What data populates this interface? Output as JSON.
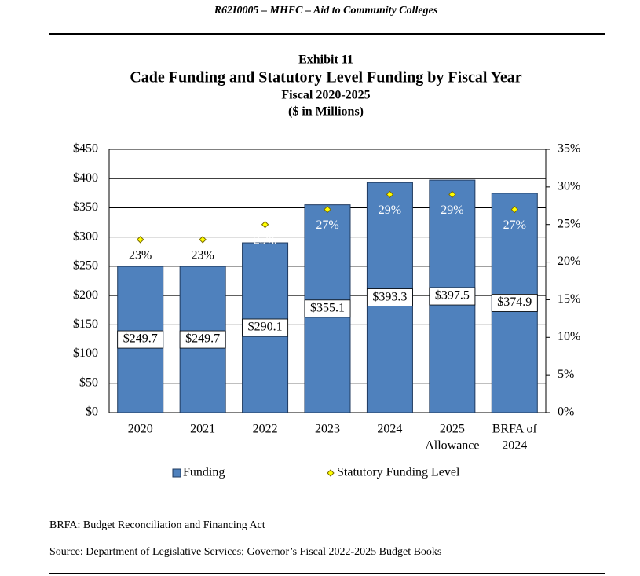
{
  "header": "R62I0005 – MHEC – Aid to Community Colleges",
  "chart_data": {
    "type": "bar",
    "exhibit": "Exhibit 11",
    "title": "Cade Funding and Statutory Level Funding by Fiscal Year",
    "subtitle": "Fiscal 2020-2025",
    "units": "($ in Millions)",
    "categories": [
      [
        "2020"
      ],
      [
        "2021"
      ],
      [
        "2022"
      ],
      [
        "2023"
      ],
      [
        "2024"
      ],
      [
        "2025",
        "Allowance"
      ],
      [
        "BRFA of",
        "2024"
      ]
    ],
    "series": [
      {
        "name": "Funding",
        "color": "#4f81bd",
        "values": [
          249.7,
          249.7,
          290.1,
          355.1,
          393.3,
          397.5,
          374.9
        ],
        "value_labels": [
          "$249.7",
          "$249.7",
          "$290.1",
          "$355.1",
          "$393.3",
          "$397.5",
          "$374.9"
        ]
      },
      {
        "name": "Statutory Funding Level",
        "color": "#ffff00",
        "axis": "y2",
        "values": [
          23,
          23,
          25,
          27,
          29,
          29,
          27
        ],
        "value_labels": [
          "23%",
          "23%",
          "25%",
          "27%",
          "29%",
          "29%",
          "27%"
        ]
      }
    ],
    "ylim": [
      0,
      450
    ],
    "yticks": [
      {
        "value": 0,
        "label": "$0"
      },
      {
        "value": 50,
        "label": "$50"
      },
      {
        "value": 100,
        "label": "$100"
      },
      {
        "value": 150,
        "label": "$150"
      },
      {
        "value": 200,
        "label": "$200"
      },
      {
        "value": 250,
        "label": "$250"
      },
      {
        "value": 300,
        "label": "$300"
      },
      {
        "value": 350,
        "label": "$350"
      },
      {
        "value": 400,
        "label": "$400"
      },
      {
        "value": 450,
        "label": "$450"
      }
    ],
    "y2lim": [
      0,
      35
    ],
    "y2ticks": [
      {
        "value": 0,
        "label": "0%"
      },
      {
        "value": 5,
        "label": "5%"
      },
      {
        "value": 10,
        "label": "10%"
      },
      {
        "value": 15,
        "label": "15%"
      },
      {
        "value": 20,
        "label": "20%"
      },
      {
        "value": 25,
        "label": "25%"
      },
      {
        "value": 30,
        "label": "30%"
      },
      {
        "value": 35,
        "label": "35%"
      }
    ],
    "grid": true,
    "legend": "bottom"
  },
  "notes": [
    "BRFA: Budget Reconciliation and Financing Act",
    "Source: Department of Legislative Services; Governor’s Fiscal 2022-2025 Budget Books"
  ]
}
